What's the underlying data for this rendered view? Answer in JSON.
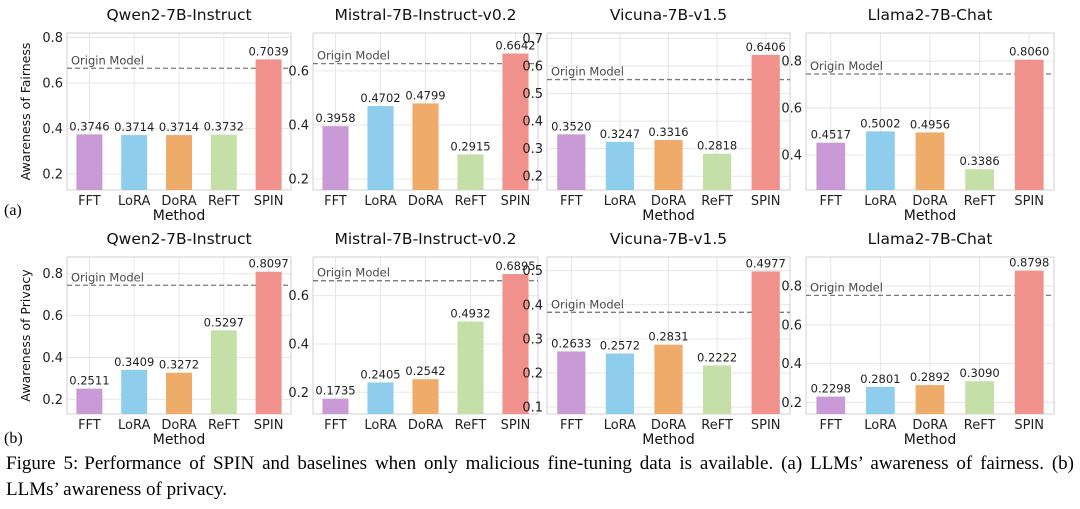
{
  "figure": {
    "row_labels": [
      "(a)",
      "(b)"
    ],
    "caption_label": "Figure 5:",
    "caption_text": "Performance of SPIN and baselines when only malicious fine-tuning data is available. (a) LLMs’ awareness of fairness. (b) LLMs’ awareness of privacy."
  },
  "colors": {
    "FFT": "#c99ad6",
    "LoRA": "#8ecdec",
    "DoRA": "#efab6a",
    "ReFT": "#c4dfa7",
    "SPIN": "#f0918b",
    "reference_line": "#7a7a7a",
    "grid": "#e6e6e6"
  },
  "chart_data": [
    {
      "type": "bar",
      "row": "a",
      "title": "Qwen2-7B-Instruct",
      "xlabel": "Method",
      "ylabel": "Awareness of Fairness",
      "categories": [
        "FFT",
        "LoRA",
        "DoRA",
        "ReFT",
        "SPIN"
      ],
      "values": [
        0.3746,
        0.3714,
        0.3714,
        0.3732,
        0.7039
      ],
      "reference": {
        "label": "Origin Model",
        "value": 0.665
      },
      "ylim": [
        0.13,
        0.82
      ],
      "yticks": [
        0.2,
        0.4,
        0.6,
        0.8
      ],
      "tick_labels": [
        "0.2",
        "0.4",
        "0.6",
        "0.8"
      ],
      "grid": true
    },
    {
      "type": "bar",
      "row": "a",
      "title": "Mistral-7B-Instruct-v0.2",
      "xlabel": "",
      "ylabel": "",
      "categories": [
        "FFT",
        "LoRA",
        "DoRA",
        "ReFT",
        "SPIN"
      ],
      "values": [
        0.3958,
        0.4702,
        0.4799,
        0.2915,
        0.6642
      ],
      "reference": {
        "label": "Origin Model",
        "value": 0.627
      },
      "ylim": [
        0.16,
        0.74
      ],
      "yticks": [
        0.2,
        0.4,
        0.6
      ],
      "tick_labels": [
        "0.2",
        "0.4",
        "0.6"
      ],
      "grid": true
    },
    {
      "type": "bar",
      "row": "a",
      "title": "Vicuna-7B-v1.5",
      "xlabel": "Method",
      "ylabel": "",
      "categories": [
        "FFT",
        "LoRA",
        "DoRA",
        "ReFT",
        "SPIN"
      ],
      "values": [
        0.352,
        0.3247,
        0.3316,
        0.2818,
        0.6406
      ],
      "reference": {
        "label": "Origin Model",
        "value": 0.551
      },
      "ylim": [
        0.15,
        0.72
      ],
      "yticks": [
        0.2,
        0.3,
        0.4,
        0.5,
        0.6,
        0.7
      ],
      "tick_labels": [
        "0.2",
        "0.3",
        "0.4",
        "0.5",
        "0.6",
        "0.7"
      ],
      "grid": true
    },
    {
      "type": "bar",
      "row": "a",
      "title": "Llama2-7B-Chat",
      "xlabel": "Method",
      "ylabel": "",
      "categories": [
        "FFT",
        "LoRA",
        "DoRA",
        "ReFT",
        "SPIN"
      ],
      "values": [
        0.4517,
        0.5002,
        0.4956,
        0.3386,
        0.806
      ],
      "reference": {
        "label": "Origin Model",
        "value": 0.745
      },
      "ylim": [
        0.25,
        0.92
      ],
      "yticks": [
        0.4,
        0.6,
        0.8
      ],
      "tick_labels": [
        "0.4",
        "0.6",
        "0.8"
      ],
      "grid": true
    },
    {
      "type": "bar",
      "row": "b",
      "title": "Qwen2-7B-Instruct",
      "xlabel": "Method",
      "ylabel": "Awareness of Privacy",
      "categories": [
        "FFT",
        "LoRA",
        "DoRA",
        "ReFT",
        "SPIN"
      ],
      "values": [
        0.2511,
        0.3409,
        0.3272,
        0.5297,
        0.8097
      ],
      "reference": {
        "label": "Origin Model",
        "value": 0.745
      },
      "ylim": [
        0.13,
        0.88
      ],
      "yticks": [
        0.2,
        0.4,
        0.6,
        0.8
      ],
      "tick_labels": [
        "0.2",
        "0.4",
        "0.6",
        "0.8"
      ],
      "grid": true
    },
    {
      "type": "bar",
      "row": "b",
      "title": "Mistral-7B-Instruct-v0.2",
      "xlabel": "",
      "ylabel": "",
      "categories": [
        "FFT",
        "LoRA",
        "DoRA",
        "ReFT",
        "SPIN"
      ],
      "values": [
        0.1735,
        0.2405,
        0.2542,
        0.4932,
        0.6895
      ],
      "reference": {
        "label": "Origin Model",
        "value": 0.662
      },
      "ylim": [
        0.11,
        0.76
      ],
      "yticks": [
        0.2,
        0.4,
        0.6
      ],
      "tick_labels": [
        "0.2",
        "0.4",
        "0.6"
      ],
      "grid": true
    },
    {
      "type": "bar",
      "row": "b",
      "title": "Vicuna-7B-v1.5",
      "xlabel": "Method",
      "ylabel": "",
      "categories": [
        "FFT",
        "LoRA",
        "DoRA",
        "ReFT",
        "SPIN"
      ],
      "values": [
        0.2633,
        0.2572,
        0.2831,
        0.2222,
        0.4977
      ],
      "reference": {
        "label": "Origin Model",
        "value": 0.378
      },
      "ylim": [
        0.08,
        0.54
      ],
      "yticks": [
        0.1,
        0.2,
        0.3,
        0.4,
        0.5
      ],
      "tick_labels": [
        "0.1",
        "0.2",
        "0.3",
        "0.4",
        "0.5"
      ],
      "grid": true
    },
    {
      "type": "bar",
      "row": "b",
      "title": "Llama2-7B-Chat",
      "xlabel": "Method",
      "ylabel": "",
      "categories": [
        "FFT",
        "LoRA",
        "DoRA",
        "ReFT",
        "SPIN"
      ],
      "values": [
        0.2298,
        0.2801,
        0.2892,
        0.309,
        0.8798
      ],
      "reference": {
        "label": "Origin Model",
        "value": 0.752
      },
      "ylim": [
        0.14,
        0.95
      ],
      "yticks": [
        0.2,
        0.4,
        0.6,
        0.8
      ],
      "tick_labels": [
        "0.2",
        "0.4",
        "0.6",
        "0.8"
      ],
      "grid": true
    }
  ]
}
